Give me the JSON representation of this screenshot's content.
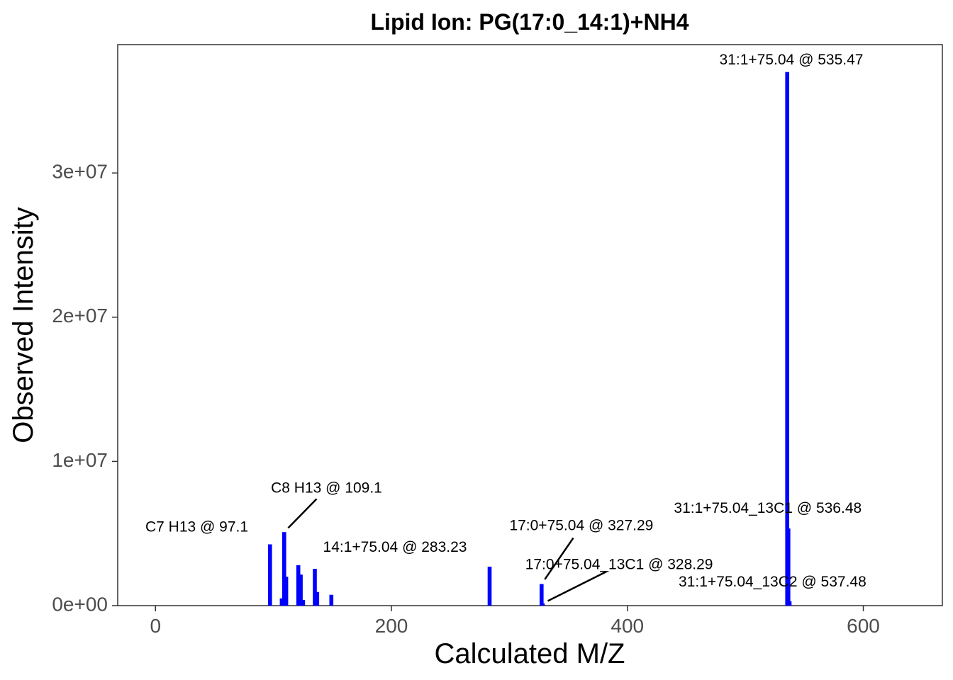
{
  "chart_data": {
    "type": "bar",
    "title": "Lipid Ion: PG(17:0_14:1)+NH4",
    "xlabel": "Calculated M/Z",
    "ylabel": "Observed Intensity",
    "xlim": [
      -32,
      667
    ],
    "ylim": [
      0,
      38900000
    ],
    "x_ticks": [
      0,
      200,
      400,
      600
    ],
    "x_tick_labels": [
      "0",
      "200",
      "400",
      "600"
    ],
    "y_ticks": [
      0,
      10000000,
      20000000,
      30000000
    ],
    "y_tick_labels": [
      "0e+00",
      "1e+07",
      "2e+07",
      "3e+07"
    ],
    "grid": false,
    "bar_color": "#0000ff",
    "bars": [
      {
        "x": 97.1,
        "y": 4250000
      },
      {
        "x": 107.1,
        "y": 500000
      },
      {
        "x": 109.1,
        "y": 5100000
      },
      {
        "x": 110.8,
        "y": 2000000
      },
      {
        "x": 121.1,
        "y": 2800000
      },
      {
        "x": 123.1,
        "y": 2150000
      },
      {
        "x": 125.1,
        "y": 400000
      },
      {
        "x": 135.1,
        "y": 2550000
      },
      {
        "x": 137.1,
        "y": 950000
      },
      {
        "x": 149.1,
        "y": 750000
      },
      {
        "x": 283.23,
        "y": 2700000
      },
      {
        "x": 327.29,
        "y": 1500000
      },
      {
        "x": 328.29,
        "y": 150000
      },
      {
        "x": 535.47,
        "y": 37000000
      },
      {
        "x": 536.48,
        "y": 5350000
      },
      {
        "x": 537.48,
        "y": 300000
      }
    ],
    "annotations": [
      {
        "text": "C7 H13 @ 97.1",
        "x": 97.1,
        "y": 4250000,
        "label_x": 35,
        "label_y": 5400000,
        "leader": false
      },
      {
        "text": "C8 H13 @ 109.1",
        "x": 109.1,
        "y": 5100000,
        "label_x": 145,
        "label_y": 8100000,
        "leader": true
      },
      {
        "text": "14:1+75.04 @ 283.23",
        "x": 283.23,
        "y": 2700000,
        "label_x": 203,
        "label_y": 4000000,
        "leader": false
      },
      {
        "text": "17:0+75.04 @ 327.29",
        "x": 327.29,
        "y": 1500000,
        "label_x": 361,
        "label_y": 5500000,
        "leader": true
      },
      {
        "text": "17:0+75.04_13C1 @ 328.29",
        "x": 328.29,
        "y": 150000,
        "label_x": 393,
        "label_y": 2800000,
        "leader": true
      },
      {
        "text": "31:1+75.04 @ 535.47",
        "x": 535.47,
        "y": 37000000,
        "label_x": 539,
        "label_y": 37800000,
        "leader": false
      },
      {
        "text": "31:1+75.04_13C1 @ 536.48",
        "x": 536.48,
        "y": 5350000,
        "label_x": 519,
        "label_y": 6700000,
        "leader": false
      },
      {
        "text": "31:1+75.04_13C2 @ 537.48",
        "x": 537.48,
        "y": 300000,
        "label_x": 523,
        "label_y": 1600000,
        "leader": false
      }
    ]
  }
}
